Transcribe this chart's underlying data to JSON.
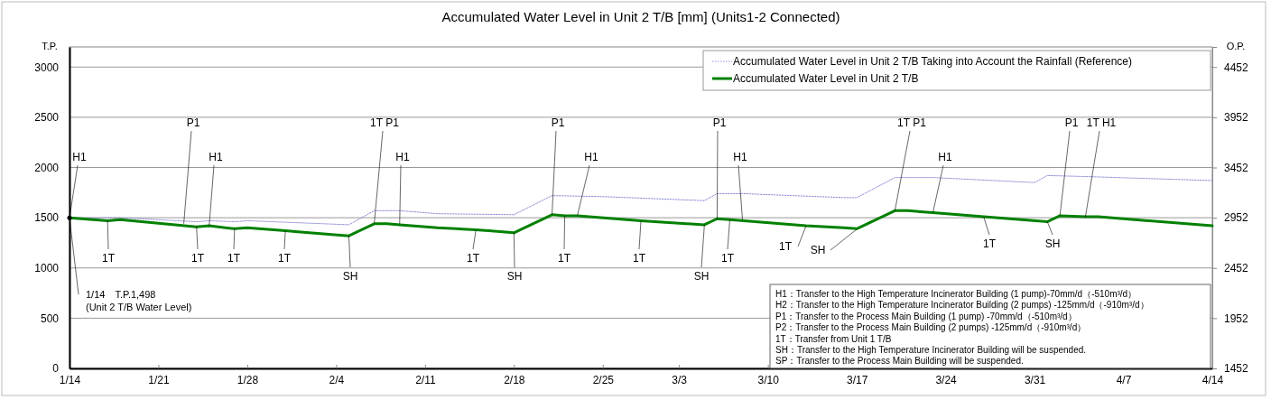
{
  "chart_data": {
    "type": "line",
    "title": "Accumulated Water Level in Unit 2 T/B [mm] (Units1-2 Connected)",
    "ylabel": "T.P.",
    "y2label": "O.P.",
    "xlim": [
      "--01-14",
      "--04-14"
    ],
    "xticks": [
      {
        "value": "--01-14",
        "label": "1/14"
      },
      {
        "value": "--01-21",
        "label": "1/21"
      },
      {
        "value": "--01-28",
        "label": "1/28"
      },
      {
        "value": "--02-04",
        "label": "2/4"
      },
      {
        "value": "--02-11",
        "label": "2/11"
      },
      {
        "value": "--02-18",
        "label": "2/18"
      },
      {
        "value": "--02-25",
        "label": "2/25"
      },
      {
        "value": "--03-03",
        "label": "3/3"
      },
      {
        "value": "--03-10",
        "label": "3/10"
      },
      {
        "value": "--03-17",
        "label": "3/17"
      },
      {
        "value": "--03-24",
        "label": "3/24"
      },
      {
        "value": "--03-31",
        "label": "3/31"
      },
      {
        "value": "--04-07",
        "label": "4/7"
      },
      {
        "value": "--04-14",
        "label": "4/14"
      }
    ],
    "ylim": [
      0,
      3200
    ],
    "yticks": [
      0,
      500,
      1000,
      1500,
      2000,
      2500,
      3000
    ],
    "y2lim": [
      1452,
      4652
    ],
    "y2ticks": [
      1452,
      1952,
      2452,
      2952,
      3452,
      3952,
      4452
    ],
    "grid": "y",
    "legend": "top right",
    "marker": "none",
    "series": [
      {
        "name": "Accumulated Water Level in Unit 2 T/B Taking into Account the Rainfall (Reference)",
        "color": "#8c8cd8",
        "line_style": "dotted",
        "x": [
          "--01-14",
          "--01-18",
          "--01-24",
          "--01-25",
          "--01-27",
          "--01-28",
          "--02-05",
          "--02-07",
          "--02-09",
          "--02-12",
          "--02-18",
          "--02-21",
          "--02-25",
          "--03-05",
          "--03-06",
          "--03-08",
          "--03-16",
          "--03-17",
          "--03-20",
          "--03-23",
          "--03-31",
          "--04-01",
          "--04-04",
          "--04-14"
        ],
        "values": [
          1498,
          1500,
          1460,
          1470,
          1460,
          1470,
          1430,
          1570,
          1570,
          1540,
          1530,
          1720,
          1710,
          1670,
          1740,
          1740,
          1700,
          1700,
          1900,
          1900,
          1850,
          1920,
          1910,
          1870
        ]
      },
      {
        "name": "Accumulated Water Level in Unit 2 T/B",
        "color": "#008000",
        "line_style": "solid",
        "x": [
          "--01-14",
          "--01-17",
          "--01-18",
          "--01-24",
          "--01-25",
          "--01-27",
          "--01-28",
          "--01-31",
          "--02-01",
          "--02-05",
          "--02-07",
          "--02-08",
          "--02-09",
          "--02-12",
          "--02-15",
          "--02-16",
          "--02-18",
          "--02-21",
          "--02-22",
          "--02-23",
          "--02-28",
          "--03-05",
          "--03-06",
          "--03-07",
          "--03-13",
          "--03-16",
          "--03-17",
          "--03-20",
          "--03-21",
          "--03-23",
          "--03-27",
          "--04-01",
          "--04-02",
          "--04-04",
          "--04-05",
          "--04-14"
        ],
        "values": [
          1498,
          1470,
          1480,
          1410,
          1420,
          1390,
          1400,
          1370,
          1360,
          1320,
          1440,
          1440,
          1430,
          1400,
          1380,
          1370,
          1350,
          1530,
          1520,
          1520,
          1470,
          1430,
          1490,
          1480,
          1420,
          1400,
          1390,
          1570,
          1570,
          1550,
          1510,
          1460,
          1520,
          1510,
          1510,
          1420
        ]
      }
    ],
    "annotations": [
      {
        "text": "H1",
        "x": "--01-14",
        "y": 1498
      },
      {
        "text": "1/14　T.P.1,498\n(Unit 2 T/B Water Level)",
        "x": "--01-14",
        "y": 1498
      },
      {
        "text": "1T",
        "x": "--01-17",
        "y": 1471
      },
      {
        "text": "P1",
        "x": "--01-23",
        "y": 1441
      },
      {
        "text": "H1",
        "x": "--01-25",
        "y": 1417
      },
      {
        "text": "1T",
        "x": "--01-24",
        "y": 1412
      },
      {
        "text": "1T",
        "x": "--01-27",
        "y": 1393
      },
      {
        "text": "1T",
        "x": "--01-31",
        "y": 1366
      },
      {
        "text": "SH",
        "x": "--02-05",
        "y": 1321
      },
      {
        "text": "1T P1",
        "x": "--02-07",
        "y": 1444
      },
      {
        "text": "H1",
        "x": "--02-09",
        "y": 1435
      },
      {
        "text": "1T",
        "x": "--02-15",
        "y": 1375
      },
      {
        "text": "SH",
        "x": "--02-18",
        "y": 1351
      },
      {
        "text": "P1",
        "x": "--02-21",
        "y": 1532
      },
      {
        "text": "1T",
        "x": "--02-22",
        "y": 1520
      },
      {
        "text": "H1",
        "x": "--02-23",
        "y": 1523
      },
      {
        "text": "1T",
        "x": "--02-28",
        "y": 1465
      },
      {
        "text": "SH",
        "x": "--03-05",
        "y": 1429
      },
      {
        "text": "P1",
        "x": "--03-06",
        "y": 1486
      },
      {
        "text": "1T",
        "x": "--03-07",
        "y": 1480
      },
      {
        "text": "H1",
        "x": "--03-08",
        "y": 1478
      },
      {
        "text": "1T",
        "x": "--03-13",
        "y": 1417
      },
      {
        "text": "SH",
        "x": "--03-17",
        "y": 1385
      },
      {
        "text": "1T P1",
        "x": "--03-20",
        "y": 1568
      },
      {
        "text": "H1",
        "x": "--03-23",
        "y": 1553
      },
      {
        "text": "1T",
        "x": "--03-27",
        "y": 1505
      },
      {
        "text": "SH",
        "x": "--04-01",
        "y": 1462
      },
      {
        "text": "P1",
        "x": "--04-02",
        "y": 1523
      },
      {
        "text": "1T H1",
        "x": "--04-04",
        "y": 1505
      },
      "H1：Transfer to the High Temperature Incinerator Building  (1 pump)-70mm/d（-510m³/d）",
      "H2：Transfer to the High Temperature Incinerator Building  (2 pumps) -125mm/d（-910m³/d）",
      "P1：Transfer to the Process Main Building (1 pump) -70mm/d（-510m³/d）",
      "P2：Transfer to the Process Main Building (2 pumps) -125mm/d（-910m³/d）",
      "1T：Transfer from Unit 1 T/B",
      "SH：Transfer to the High Temperature Incinerator Building will be suspended.",
      "SP：Transfer to the Process Main Building will be suspended."
    ]
  }
}
